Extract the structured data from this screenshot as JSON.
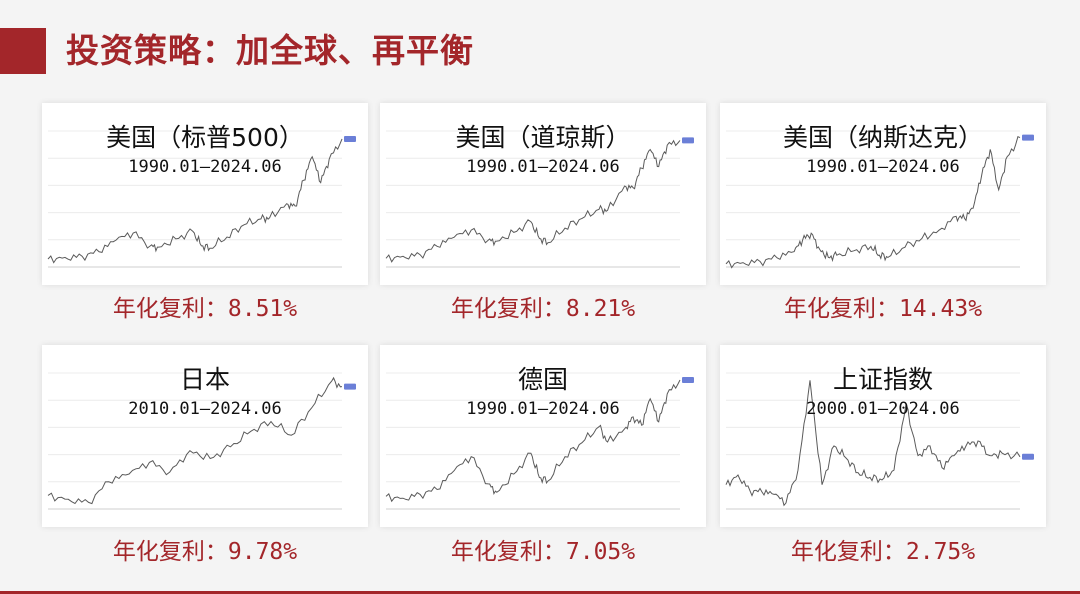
{
  "page": {
    "title": "投资策略：加全球、再平衡"
  },
  "colors": {
    "accent": "#a3262a",
    "line": "#5a5a5a",
    "marker": "#6b7fd7"
  },
  "chart_data": [
    {
      "type": "line",
      "title": "美国（标普500）",
      "period": "1990.01—2024.06",
      "cagr_label": "年化复利：",
      "cagr_value": "8.51%",
      "x": [
        1990,
        1992,
        1994,
        1996,
        1998,
        2000,
        2002,
        2003,
        2005,
        2007,
        2008,
        2009,
        2011,
        2013,
        2015,
        2016,
        2018,
        2019,
        2020,
        2021,
        2022,
        2023,
        2024.5
      ],
      "values": [
        340,
        410,
        460,
        650,
        1150,
        1450,
        900,
        850,
        1200,
        1520,
        900,
        800,
        1280,
        1800,
        2050,
        2100,
        2700,
        2600,
        3700,
        4700,
        3600,
        4600,
        5460
      ],
      "ylim": [
        0,
        5800
      ]
    },
    {
      "type": "line",
      "title": "美国（道琼斯）",
      "period": "1990.01—2024.06",
      "cagr_label": "年化复利：",
      "cagr_value": "8.21%",
      "x": [
        1990,
        1992,
        1994,
        1996,
        1998,
        2000,
        2002,
        2003,
        2005,
        2007,
        2008,
        2009,
        2011,
        2013,
        2015,
        2016,
        2018,
        2019,
        2020,
        2021,
        2022,
        2023,
        2024.5
      ],
      "values": [
        2700,
        3300,
        3800,
        6400,
        9200,
        11400,
        8300,
        8000,
        10700,
        14000,
        8800,
        7500,
        12000,
        15000,
        17800,
        17500,
        25000,
        24500,
        30500,
        36300,
        31000,
        37600,
        39100
      ],
      "ylim": [
        0,
        42000
      ]
    },
    {
      "type": "line",
      "title": "美国（纳斯达克）",
      "period": "1990.01—2024.06",
      "cagr_label": "年化复利：",
      "cagr_value": "14.43%",
      "x": [
        1990,
        1992,
        1994,
        1996,
        1998,
        1999,
        2000,
        2001,
        2002,
        2003,
        2005,
        2007,
        2008,
        2009,
        2011,
        2013,
        2015,
        2017,
        2018,
        2019,
        2020,
        2021,
        2022,
        2023,
        2024.5
      ],
      "values": [
        420,
        600,
        750,
        1250,
        2100,
        3700,
        4600,
        2400,
        1300,
        1600,
        2200,
        2800,
        1600,
        1300,
        2700,
        3900,
        5000,
        6900,
        6600,
        8000,
        12500,
        16000,
        10500,
        15000,
        17600
      ],
      "ylim": [
        0,
        18500
      ]
    },
    {
      "type": "line",
      "title": "日本",
      "period": "2010.01—2024.06",
      "cagr_label": "年化复利：",
      "cagr_value": "9.78%",
      "x": [
        2010,
        2011,
        2012,
        2013,
        2014,
        2015,
        2016,
        2017,
        2018,
        2019,
        2020,
        2021,
        2022,
        2023,
        2024,
        2024.5
      ],
      "values": [
        10500,
        9500,
        8700,
        14000,
        16000,
        19000,
        16500,
        22000,
        20000,
        23000,
        27000,
        29500,
        26000,
        33000,
        40000,
        38500
      ],
      "ylim": [
        7000,
        42000
      ]
    },
    {
      "type": "line",
      "title": "德国",
      "period": "1990.01—2024.06",
      "cagr_label": "年化复利：",
      "cagr_value": "7.05%",
      "x": [
        1990,
        1992,
        1994,
        1996,
        1998,
        2000,
        2002,
        2003,
        2005,
        2007,
        2008,
        2009,
        2011,
        2013,
        2015,
        2016,
        2018,
        2019,
        2020,
        2021,
        2022,
        2023,
        2024.5
      ],
      "values": [
        1800,
        1550,
        2100,
        2800,
        5500,
        7500,
        3600,
        2400,
        5000,
        8000,
        4500,
        4000,
        7500,
        9500,
        11800,
        9600,
        11500,
        13200,
        12000,
        15800,
        12500,
        16500,
        18500
      ],
      "ylim": [
        0,
        19500
      ]
    },
    {
      "type": "line",
      "title": "上证指数",
      "period": "2000.01—2024.06",
      "cagr_label": "年化复利：",
      "cagr_value": "2.75%",
      "x": [
        2000,
        2001,
        2002,
        2003,
        2004,
        2005,
        2006,
        2007,
        2008,
        2009,
        2010,
        2011,
        2012,
        2013,
        2014,
        2015,
        2016,
        2017,
        2018,
        2019,
        2020,
        2021,
        2022,
        2023,
        2024.5
      ],
      "values": [
        1800,
        2200,
        1550,
        1500,
        1400,
        1050,
        2400,
        6100,
        1800,
        3400,
        2900,
        2300,
        2100,
        2000,
        2400,
        5100,
        3000,
        3400,
        2500,
        3000,
        3400,
        3600,
        3000,
        3100,
        2950
      ],
      "ylim": [
        800,
        6400
      ]
    }
  ]
}
